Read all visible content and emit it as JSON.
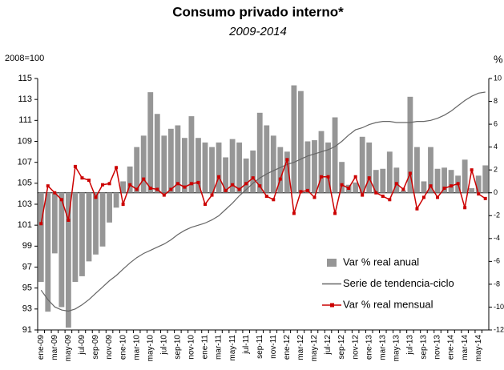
{
  "chart_data": {
    "type": "combo",
    "title": "Consumo privado interno*",
    "subtitle": "2009-2014",
    "y_label": "2008=100",
    "y2_label": "%",
    "categories": [
      "ene-09",
      null,
      "mar-09",
      null,
      "may-09",
      null,
      "jul-09",
      null,
      "sep-09",
      null,
      "nov-09",
      null,
      "ene-10",
      null,
      "mar-10",
      null,
      "may-10",
      null,
      "jul-10",
      null,
      "sep-10",
      null,
      "nov-10",
      null,
      "ene-11",
      null,
      "mar-11",
      null,
      "may-11",
      null,
      "jul-11",
      null,
      "sep-11",
      null,
      "nov-11",
      null,
      "ene-12",
      null,
      "mar-12",
      null,
      "may-12",
      null,
      "jul-12",
      null,
      "sep-12",
      null,
      "nov-12",
      null,
      "ene-13",
      null,
      "mar-13",
      null,
      "may-13",
      null,
      "jul-13",
      null,
      "sep-13",
      null,
      "nov-13",
      null,
      "ene-14",
      null,
      "mar-14",
      null,
      "may-14",
      null
    ],
    "series": [
      {
        "name": "Var % real anual",
        "type": "bar",
        "axis": "y2",
        "color": "#969696",
        "values": [
          -7.8,
          -10.4,
          -5.3,
          -10.0,
          -11.8,
          -7.8,
          -7.3,
          -6.0,
          -5.4,
          -4.7,
          -2.6,
          -1.3,
          1.0,
          2.3,
          4.0,
          5.0,
          8.8,
          6.9,
          5.0,
          5.6,
          5.9,
          4.8,
          6.7,
          4.8,
          4.4,
          4.0,
          4.4,
          3.1,
          4.7,
          4.4,
          3.0,
          3.7,
          7.0,
          5.9,
          5.0,
          4.0,
          3.6,
          9.4,
          8.9,
          4.5,
          4.6,
          5.4,
          4.4,
          6.6,
          2.7,
          0.7,
          0.9,
          4.9,
          4.4,
          2.0,
          2.1,
          3.6,
          2.2,
          0.2,
          8.4,
          4.0,
          1.0,
          4.0,
          2.1,
          2.2,
          2.0,
          1.5,
          2.9,
          0.4,
          1.5,
          2.4
        ]
      },
      {
        "name": "Serie de tendencia-ciclo",
        "type": "line",
        "axis": "y",
        "color": "#666666",
        "values": [
          94.8,
          93.9,
          93.2,
          92.9,
          92.8,
          93.0,
          93.4,
          93.9,
          94.5,
          95.1,
          95.7,
          96.2,
          96.8,
          97.4,
          97.9,
          98.3,
          98.6,
          98.9,
          99.2,
          99.6,
          100.1,
          100.5,
          100.8,
          101.0,
          101.2,
          101.5,
          101.9,
          102.5,
          103.1,
          103.8,
          104.4,
          105.0,
          105.5,
          105.9,
          106.2,
          106.5,
          106.8,
          107.0,
          107.3,
          107.6,
          107.8,
          108.0,
          108.2,
          108.5,
          109.0,
          109.6,
          110.1,
          110.3,
          110.6,
          110.8,
          110.9,
          110.9,
          110.8,
          110.8,
          110.8,
          110.9,
          110.9,
          111.0,
          111.2,
          111.5,
          111.9,
          112.4,
          112.9,
          113.3,
          113.6,
          113.7
        ]
      },
      {
        "name": "Var % real mensual",
        "type": "line",
        "axis": "y2",
        "color": "#cc0000",
        "marker": "square",
        "values": [
          -2.7,
          0.6,
          0.0,
          -0.6,
          -2.4,
          2.3,
          1.3,
          1.1,
          -0.4,
          0.7,
          0.8,
          2.2,
          -1.0,
          0.7,
          0.3,
          1.2,
          0.4,
          0.3,
          -0.2,
          0.3,
          0.8,
          0.5,
          0.8,
          0.9,
          -1.0,
          -0.2,
          1.4,
          0.2,
          0.7,
          0.3,
          0.8,
          1.3,
          0.6,
          -0.3,
          -0.6,
          1.2,
          2.9,
          -1.8,
          0.1,
          0.2,
          -0.4,
          1.4,
          1.4,
          -1.8,
          0.7,
          0.4,
          1.4,
          -0.2,
          1.3,
          0.0,
          -0.3,
          -0.6,
          0.8,
          0.3,
          1.7,
          -1.4,
          -0.4,
          0.6,
          -0.4,
          0.4,
          0.6,
          0.8,
          -1.3,
          2.0,
          -0.1,
          -0.5
        ]
      }
    ],
    "ylim": [
      91,
      115
    ],
    "yticks": [
      91,
      93,
      95,
      97,
      99,
      101,
      103,
      105,
      107,
      109,
      111,
      113,
      115
    ],
    "y2lim": [
      -12,
      10
    ],
    "y2ticks": [
      -12,
      -10,
      -8,
      -6,
      -4,
      -2,
      0,
      2,
      4,
      6,
      8,
      10
    ],
    "legend": "lower-right"
  }
}
